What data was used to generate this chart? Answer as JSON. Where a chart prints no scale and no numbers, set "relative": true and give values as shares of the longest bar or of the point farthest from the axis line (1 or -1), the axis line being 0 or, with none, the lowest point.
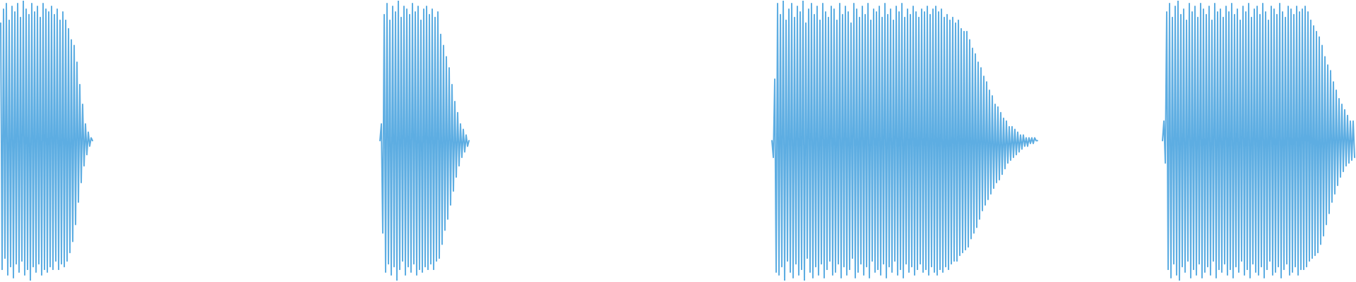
{
  "chart_data": [
    {
      "type": "line",
      "relative": true,
      "color": "#5dade2",
      "categories": [
        null,
        null,
        null,
        null,
        null,
        null,
        null,
        null,
        null,
        null,
        null,
        null,
        null,
        null,
        null,
        null,
        null,
        null,
        null,
        null,
        null,
        null,
        null,
        null,
        null,
        null,
        null,
        null,
        null,
        null,
        null,
        null,
        null,
        null,
        null,
        null,
        null,
        null,
        null,
        null,
        null,
        null,
        null,
        null,
        null,
        null,
        null,
        null,
        null,
        null,
        null,
        null,
        null,
        null,
        null,
        null,
        null,
        null,
        null,
        null,
        null,
        null,
        null,
        null,
        null,
        null
      ],
      "values": [
        0.92,
        0.04,
        0.97,
        0.08,
        0.99,
        0.02,
        0.93,
        0.05,
        0.98,
        0.01,
        0.96,
        0.06,
        0.99,
        0.03,
        0.94,
        0.07,
        1.0,
        0.02,
        0.97,
        0.04,
        0.95,
        0.0,
        0.99,
        0.05,
        0.96,
        0.03,
        0.98,
        0.06,
        0.94,
        0.02,
        0.99,
        0.04,
        0.97,
        0.03,
        0.96,
        0.05,
        0.98,
        0.04,
        0.95,
        0.07,
        0.97,
        0.04,
        0.93,
        0.06,
        0.96,
        0.05,
        0.93,
        0.07,
        0.9,
        0.1,
        0.86,
        0.14,
        0.84,
        0.2,
        0.78,
        0.28,
        0.7,
        0.35,
        0.63,
        0.41,
        0.56,
        0.45,
        0.53,
        0.48,
        0.51,
        0.5
      ]
    },
    {
      "type": "line",
      "relative": true,
      "color": "#5dade2",
      "categories": [
        null,
        null,
        null,
        null,
        null,
        null,
        null,
        null,
        null,
        null,
        null,
        null,
        null,
        null,
        null,
        null,
        null,
        null,
        null,
        null,
        null,
        null,
        null,
        null,
        null,
        null,
        null,
        null,
        null,
        null,
        null,
        null,
        null,
        null,
        null,
        null,
        null,
        null,
        null,
        null,
        null,
        null,
        null,
        null,
        null,
        null,
        null,
        null,
        null,
        null,
        null,
        null,
        null,
        null,
        null,
        null,
        null,
        null,
        null,
        null,
        null,
        null,
        null,
        null
      ],
      "values": [
        0.5,
        0.56,
        0.17,
        0.95,
        0.03,
        0.99,
        0.06,
        0.93,
        0.02,
        0.98,
        0.05,
        0.96,
        0.0,
        1.0,
        0.04,
        0.94,
        0.07,
        0.98,
        0.02,
        0.97,
        0.05,
        0.95,
        0.03,
        0.99,
        0.06,
        0.96,
        0.02,
        0.98,
        0.04,
        0.93,
        0.03,
        0.97,
        0.05,
        0.98,
        0.04,
        0.95,
        0.06,
        0.97,
        0.04,
        0.94,
        0.07,
        0.96,
        0.08,
        0.88,
        0.13,
        0.84,
        0.18,
        0.8,
        0.22,
        0.76,
        0.27,
        0.7,
        0.32,
        0.64,
        0.37,
        0.6,
        0.41,
        0.56,
        0.44,
        0.54,
        0.46,
        0.52,
        0.48,
        0.5
      ]
    },
    {
      "type": "line",
      "relative": true,
      "color": "#5dade2",
      "categories": [
        null,
        null,
        null,
        null,
        null,
        null,
        null,
        null,
        null,
        null,
        null,
        null,
        null,
        null,
        null,
        null,
        null,
        null,
        null,
        null,
        null,
        null,
        null,
        null,
        null,
        null,
        null,
        null,
        null,
        null,
        null,
        null,
        null,
        null,
        null,
        null,
        null,
        null,
        null,
        null,
        null,
        null,
        null,
        null,
        null,
        null,
        null,
        null,
        null,
        null,
        null,
        null,
        null,
        null,
        null,
        null,
        null,
        null,
        null,
        null,
        null,
        null,
        null,
        null,
        null,
        null,
        null,
        null,
        null,
        null,
        null,
        null,
        null,
        null,
        null,
        null,
        null,
        null,
        null,
        null,
        null,
        null,
        null,
        null,
        null,
        null,
        null,
        null,
        null,
        null,
        null,
        null,
        null,
        null,
        null,
        null,
        null,
        null,
        null,
        null,
        null,
        null,
        null,
        null,
        null,
        null,
        null,
        null,
        null,
        null,
        null,
        null,
        null,
        null,
        null,
        null,
        null,
        null,
        null,
        null,
        null,
        null,
        null,
        null,
        null,
        null,
        null,
        null,
        null,
        null,
        null,
        null,
        null,
        null,
        null,
        null,
        null,
        null,
        null,
        null,
        null,
        null,
        null,
        null,
        null,
        null,
        null,
        null,
        null,
        null,
        null,
        null,
        null,
        null,
        null,
        null,
        null,
        null,
        null,
        null,
        null,
        null,
        null,
        null,
        null,
        null,
        null,
        null,
        null,
        null,
        null,
        null,
        null,
        null,
        null,
        null,
        null,
        null,
        null,
        null,
        null,
        null,
        null,
        null,
        null,
        null,
        null,
        null,
        null
      ],
      "values": [
        0.5,
        0.44,
        0.72,
        0.03,
        0.99,
        0.02,
        0.95,
        0.05,
        1.0,
        0.0,
        0.93,
        0.07,
        0.97,
        0.03,
        0.99,
        0.01,
        0.94,
        0.06,
        0.98,
        0.02,
        0.96,
        0.04,
        1.0,
        0.0,
        0.92,
        0.08,
        0.97,
        0.03,
        0.99,
        0.01,
        0.95,
        0.05,
        0.98,
        0.02,
        0.93,
        0.06,
        0.99,
        0.01,
        0.96,
        0.04,
        0.94,
        0.07,
        0.98,
        0.02,
        0.97,
        0.03,
        0.93,
        0.06,
        0.99,
        0.01,
        0.95,
        0.05,
        0.98,
        0.02,
        0.96,
        0.04,
        0.92,
        0.08,
        0.99,
        0.01,
        0.97,
        0.03,
        0.94,
        0.06,
        0.98,
        0.02,
        0.95,
        0.05,
        0.99,
        0.01,
        0.93,
        0.07,
        0.97,
        0.03,
        0.96,
        0.04,
        0.98,
        0.02,
        0.94,
        0.06,
        0.99,
        0.01,
        0.95,
        0.05,
        0.97,
        0.03,
        0.93,
        0.07,
        0.98,
        0.02,
        0.96,
        0.04,
        0.99,
        0.01,
        0.94,
        0.06,
        0.97,
        0.03,
        0.95,
        0.05,
        0.98,
        0.02,
        0.96,
        0.04,
        0.94,
        0.06,
        0.97,
        0.03,
        0.96,
        0.04,
        0.98,
        0.02,
        0.95,
        0.05,
        0.97,
        0.03,
        0.98,
        0.02,
        0.96,
        0.04,
        0.97,
        0.03,
        0.94,
        0.05,
        0.95,
        0.04,
        0.93,
        0.06,
        0.94,
        0.07,
        0.92,
        0.07,
        0.93,
        0.09,
        0.9,
        0.1,
        0.89,
        0.11,
        0.89,
        0.12,
        0.86,
        0.15,
        0.83,
        0.17,
        0.81,
        0.19,
        0.78,
        0.22,
        0.76,
        0.25,
        0.73,
        0.27,
        0.71,
        0.29,
        0.68,
        0.31,
        0.66,
        0.33,
        0.63,
        0.35,
        0.62,
        0.36,
        0.6,
        0.38,
        0.58,
        0.4,
        0.57,
        0.42,
        0.55,
        0.43,
        0.55,
        0.44,
        0.54,
        0.45,
        0.53,
        0.46,
        0.52,
        0.47,
        0.52,
        0.48,
        0.51,
        0.48,
        0.51,
        0.49,
        0.51,
        0.49,
        0.51,
        0.5,
        0.5
      ]
    },
    {
      "type": "line",
      "relative": true,
      "color": "#5dade2",
      "categories": [
        null,
        null,
        null,
        null,
        null,
        null,
        null,
        null,
        null,
        null,
        null,
        null,
        null,
        null,
        null,
        null,
        null,
        null,
        null,
        null,
        null,
        null,
        null,
        null,
        null,
        null,
        null,
        null,
        null,
        null,
        null,
        null,
        null,
        null,
        null,
        null,
        null,
        null,
        null,
        null,
        null,
        null,
        null,
        null,
        null,
        null,
        null,
        null,
        null,
        null,
        null,
        null,
        null,
        null,
        null,
        null,
        null,
        null,
        null,
        null,
        null,
        null,
        null,
        null,
        null,
        null,
        null,
        null,
        null,
        null,
        null,
        null,
        null,
        null,
        null,
        null,
        null,
        null,
        null,
        null,
        null,
        null,
        null,
        null,
        null,
        null,
        null,
        null,
        null,
        null,
        null,
        null,
        null,
        null,
        null,
        null,
        null,
        null,
        null,
        null,
        null,
        null,
        null,
        null,
        null,
        null,
        null,
        null,
        null,
        null,
        null,
        null,
        null,
        null,
        null,
        null,
        null,
        null,
        null,
        null,
        null,
        null,
        null,
        null,
        null,
        null,
        null,
        null,
        null,
        null,
        null,
        null,
        null,
        null,
        null,
        null,
        null
      ],
      "values": [
        0.5,
        0.57,
        0.42,
        0.96,
        0.04,
        0.99,
        0.01,
        0.94,
        0.06,
        0.98,
        0.02,
        1.0,
        0.0,
        0.95,
        0.05,
        0.97,
        0.03,
        0.93,
        0.07,
        0.99,
        0.01,
        0.96,
        0.04,
        0.98,
        0.02,
        0.94,
        0.06,
        0.99,
        0.01,
        0.97,
        0.03,
        0.95,
        0.05,
        0.98,
        0.02,
        0.93,
        0.07,
        0.99,
        0.01,
        0.96,
        0.04,
        0.97,
        0.03,
        0.94,
        0.06,
        0.98,
        0.02,
        0.96,
        0.04,
        0.99,
        0.01,
        0.95,
        0.05,
        0.97,
        0.03,
        0.93,
        0.07,
        0.98,
        0.02,
        0.96,
        0.04,
        0.99,
        0.01,
        0.94,
        0.06,
        0.97,
        0.03,
        0.98,
        0.02,
        0.95,
        0.05,
        0.99,
        0.01,
        0.96,
        0.04,
        0.93,
        0.07,
        0.98,
        0.02,
        0.97,
        0.03,
        0.95,
        0.05,
        0.99,
        0.01,
        0.96,
        0.04,
        0.94,
        0.06,
        0.98,
        0.02,
        0.97,
        0.03,
        0.95,
        0.05,
        0.98,
        0.02,
        0.96,
        0.04,
        0.97,
        0.04,
        0.98,
        0.05,
        0.96,
        0.07,
        0.93,
        0.08,
        0.91,
        0.09,
        0.89,
        0.1,
        0.87,
        0.13,
        0.84,
        0.16,
        0.8,
        0.2,
        0.77,
        0.24,
        0.75,
        0.28,
        0.71,
        0.31,
        0.68,
        0.34,
        0.65,
        0.37,
        0.63,
        0.39,
        0.61,
        0.41,
        0.59,
        0.42,
        0.57,
        0.43,
        0.57,
        0.44
      ]
    }
  ]
}
